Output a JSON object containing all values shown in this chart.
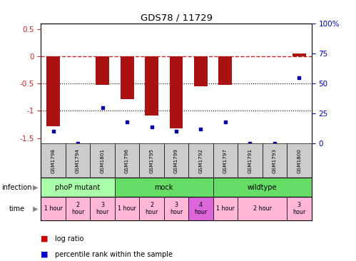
{
  "title": "GDS78 / 11729",
  "samples": [
    "GSM1798",
    "GSM1794",
    "GSM1801",
    "GSM1796",
    "GSM1795",
    "GSM1799",
    "GSM1792",
    "GSM1797",
    "GSM1791",
    "GSM1793",
    "GSM1800"
  ],
  "log_ratios": [
    -1.28,
    0.0,
    -0.52,
    -0.78,
    -1.08,
    -1.32,
    -0.55,
    -0.52,
    0.0,
    0.0,
    0.05
  ],
  "percentile_ranks": [
    10,
    0,
    30,
    18,
    14,
    10,
    12,
    18,
    0,
    0,
    55
  ],
  "infection_groups": [
    {
      "label": "phoP mutant",
      "start": 0,
      "end": 3,
      "color": "#aaffaa"
    },
    {
      "label": "mock",
      "start": 3,
      "end": 7,
      "color": "#66dd66"
    },
    {
      "label": "wildtype",
      "start": 7,
      "end": 11,
      "color": "#66dd66"
    }
  ],
  "time_groups": [
    {
      "label": "1 hour",
      "start": 0,
      "end": 1,
      "color": "#ffb6d9"
    },
    {
      "label": "2\nhour",
      "start": 1,
      "end": 2,
      "color": "#ffb6d9"
    },
    {
      "label": "3\nhour",
      "start": 2,
      "end": 3,
      "color": "#ffb6d9"
    },
    {
      "label": "1 hour",
      "start": 3,
      "end": 4,
      "color": "#ffb6d9"
    },
    {
      "label": "2\nhour",
      "start": 4,
      "end": 5,
      "color": "#ffb6d9"
    },
    {
      "label": "3\nhour",
      "start": 5,
      "end": 6,
      "color": "#ffb6d9"
    },
    {
      "label": "4\nhour",
      "start": 6,
      "end": 7,
      "color": "#dd66dd"
    },
    {
      "label": "1 hour",
      "start": 7,
      "end": 8,
      "color": "#ffb6d9"
    },
    {
      "label": "2 hour",
      "start": 8,
      "end": 10,
      "color": "#ffb6d9"
    },
    {
      "label": "3\nhour",
      "start": 10,
      "end": 11,
      "color": "#ffb6d9"
    }
  ],
  "ylim_left": [
    -1.6,
    0.6
  ],
  "ylim_right": [
    0,
    100
  ],
  "yticks_left": [
    0.5,
    0.0,
    -0.5,
    -1.0,
    -1.5
  ],
  "yticks_right": [
    0,
    25,
    50,
    75,
    100
  ],
  "bar_color": "#AA1111",
  "dot_color": "#0000AA",
  "hline_color": "#CC2222",
  "dotline_color": "black",
  "bg_color": "white",
  "label_color_left": "#CC2222",
  "label_color_right": "#0000CC",
  "gsm_bg": "#cccccc",
  "legend_bar_color": "#CC0000",
  "legend_dot_color": "#0000CC"
}
